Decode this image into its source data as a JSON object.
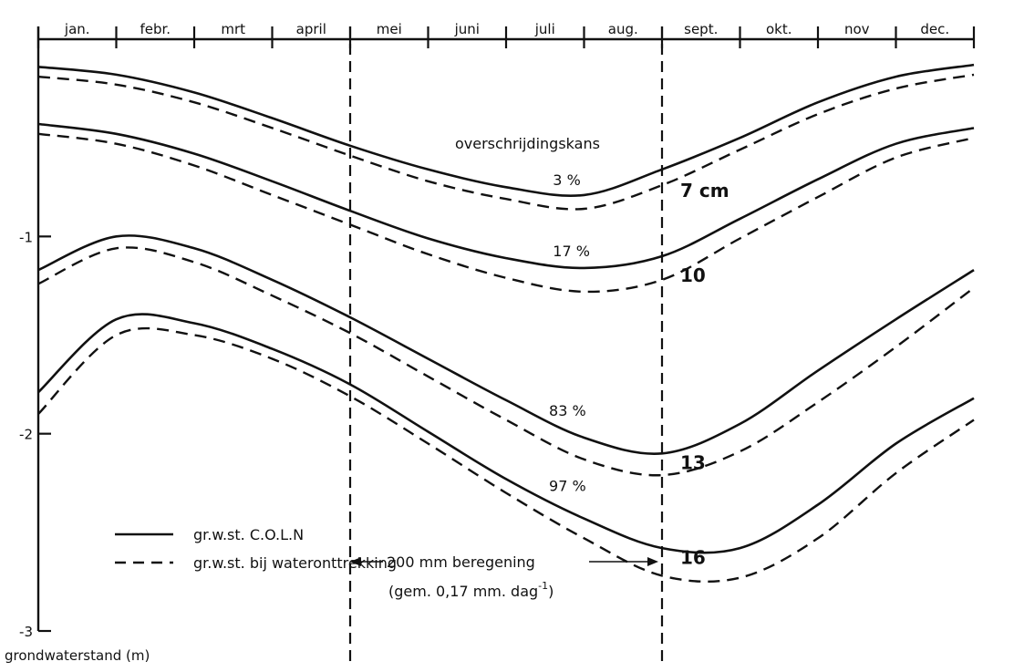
{
  "chart_data": {
    "type": "line",
    "title": "",
    "xlabel": "",
    "ylabel": "grondwaterstand (m)",
    "categories": [
      "jan.",
      "febr.",
      "mrt",
      "april",
      "mei",
      "juni",
      "juli",
      "aug.",
      "sept.",
      "okt.",
      "nov",
      "dec."
    ],
    "ylim": [
      -3,
      0
    ],
    "yticks": [
      -1,
      -2,
      -3
    ],
    "x": [
      0,
      1,
      2,
      3,
      4,
      5,
      6,
      7,
      8,
      9,
      10,
      11,
      12
    ],
    "exceedance_title": "overschrijdingskans",
    "series": [
      {
        "style": "solid",
        "group": "3 %",
        "values": [
          -0.14,
          -0.18,
          -0.27,
          -0.4,
          -0.54,
          -0.66,
          -0.75,
          -0.79,
          -0.66,
          -0.5,
          -0.32,
          -0.19,
          -0.13
        ]
      },
      {
        "style": "dashed",
        "group": "3 %",
        "values": [
          -0.19,
          -0.23,
          -0.32,
          -0.45,
          -0.59,
          -0.72,
          -0.81,
          -0.86,
          -0.74,
          -0.56,
          -0.38,
          -0.25,
          -0.18
        ]
      },
      {
        "style": "solid",
        "group": "17 %",
        "values": [
          -0.43,
          -0.48,
          -0.58,
          -0.72,
          -0.87,
          -1.01,
          -1.11,
          -1.16,
          -1.1,
          -0.91,
          -0.71,
          -0.53,
          -0.45
        ]
      },
      {
        "style": "dashed",
        "group": "17 %",
        "values": [
          -0.48,
          -0.53,
          -0.64,
          -0.79,
          -0.94,
          -1.09,
          -1.21,
          -1.28,
          -1.22,
          -1.01,
          -0.8,
          -0.6,
          -0.5
        ]
      },
      {
        "style": "solid",
        "group": "83 %",
        "values": [
          -1.17,
          -1.0,
          -1.06,
          -1.22,
          -1.41,
          -1.62,
          -1.83,
          -2.02,
          -2.1,
          -1.95,
          -1.68,
          -1.42,
          -1.17
        ]
      },
      {
        "style": "dashed",
        "group": "83 %",
        "values": [
          -1.24,
          -1.06,
          -1.13,
          -1.3,
          -1.49,
          -1.71,
          -1.93,
          -2.13,
          -2.21,
          -2.09,
          -1.84,
          -1.56,
          -1.26
        ]
      },
      {
        "style": "solid",
        "group": "97 %",
        "values": [
          -1.79,
          -1.42,
          -1.44,
          -1.57,
          -1.75,
          -1.99,
          -2.23,
          -2.43,
          -2.58,
          -2.58,
          -2.36,
          -2.05,
          -1.82
        ]
      },
      {
        "style": "dashed",
        "group": "97 %",
        "values": [
          -1.9,
          -1.5,
          -1.5,
          -1.62,
          -1.81,
          -2.05,
          -2.3,
          -2.53,
          -2.72,
          -2.73,
          -2.53,
          -2.2,
          -1.93
        ]
      }
    ],
    "annotations": {
      "exceedance_labels": [
        {
          "text": "3 %",
          "x": 6.6,
          "y": -0.74
        },
        {
          "text": "17 %",
          "x": 6.6,
          "y": -1.1
        },
        {
          "text": "83 %",
          "x": 6.55,
          "y": -1.91
        },
        {
          "text": "97 %",
          "x": 6.55,
          "y": -2.29
        }
      ],
      "differences": [
        {
          "text": "7 cm",
          "x": 8.0,
          "y": -0.8
        },
        {
          "text": "10",
          "x": 8.0,
          "y": -1.23
        },
        {
          "text": "13",
          "x": 8.0,
          "y": -2.18
        },
        {
          "text": "16",
          "x": 8.0,
          "y": -2.66
        }
      ]
    },
    "period_lines_x": [
      4,
      8
    ],
    "period_label": "200 mm beregening",
    "period_sublabel": "(gem. 0,17 mm. dag",
    "period_sublabel_sup": "-1",
    "period_sublabel_end": ")",
    "legend": [
      {
        "style": "solid",
        "label": "gr.w.st. C.O.L.N"
      },
      {
        "style": "dashed",
        "label": "gr.w.st. bij wateronttrekking"
      }
    ],
    "legend_position": "bottom-left"
  }
}
